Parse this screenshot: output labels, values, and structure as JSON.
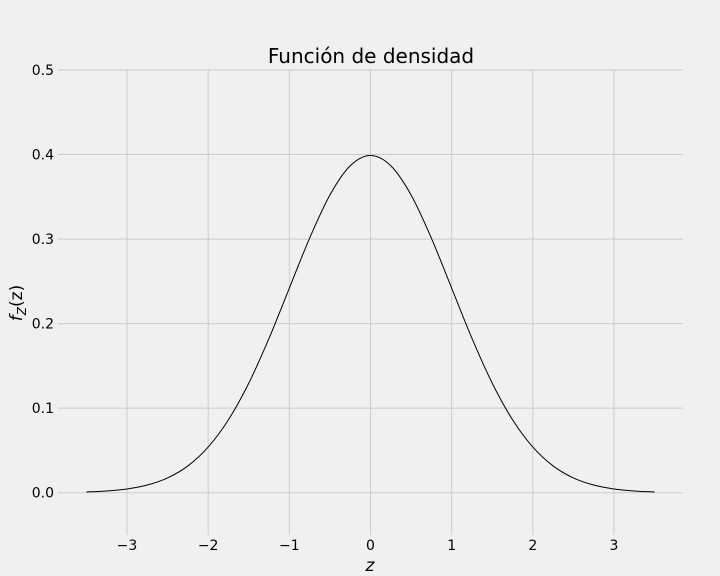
{
  "chart_data": {
    "type": "line",
    "title": "Función de densidad",
    "xlabel": "z",
    "ylabel_main": "f",
    "ylabel_sub": "Z",
    "ylabel_arg": "(z)",
    "xlim": [
      -3.85,
      3.85
    ],
    "ylim": [
      -0.05,
      0.5
    ],
    "xticks": [
      -3,
      -2,
      -1,
      0,
      1,
      2,
      3
    ],
    "xtick_labels": [
      "−3",
      "−2",
      "−1",
      "0",
      "1",
      "2",
      "3"
    ],
    "yticks": [
      0.0,
      0.1,
      0.2,
      0.3,
      0.4,
      0.5
    ],
    "ytick_labels": [
      "0.0",
      "0.1",
      "0.2",
      "0.3",
      "0.4",
      "0.5"
    ],
    "grid": true,
    "series": [
      {
        "color": "#000000",
        "x": [
          -3.5,
          -3.25,
          -3.0,
          -2.75,
          -2.5,
          -2.25,
          -2.0,
          -1.75,
          -1.5,
          -1.25,
          -1.0,
          -0.75,
          -0.5,
          -0.25,
          0.0,
          0.25,
          0.5,
          0.75,
          1.0,
          1.25,
          1.5,
          1.75,
          2.0,
          2.25,
          2.5,
          2.75,
          3.0,
          3.25,
          3.5
        ],
        "y": [
          0.0009,
          0.002,
          0.0044,
          0.0091,
          0.0175,
          0.0317,
          0.054,
          0.0863,
          0.1295,
          0.1826,
          0.242,
          0.3011,
          0.3521,
          0.3867,
          0.3989,
          0.3867,
          0.3521,
          0.3011,
          0.242,
          0.1826,
          0.1295,
          0.0863,
          0.054,
          0.0317,
          0.0175,
          0.0091,
          0.0044,
          0.002,
          0.0009
        ]
      }
    ]
  }
}
